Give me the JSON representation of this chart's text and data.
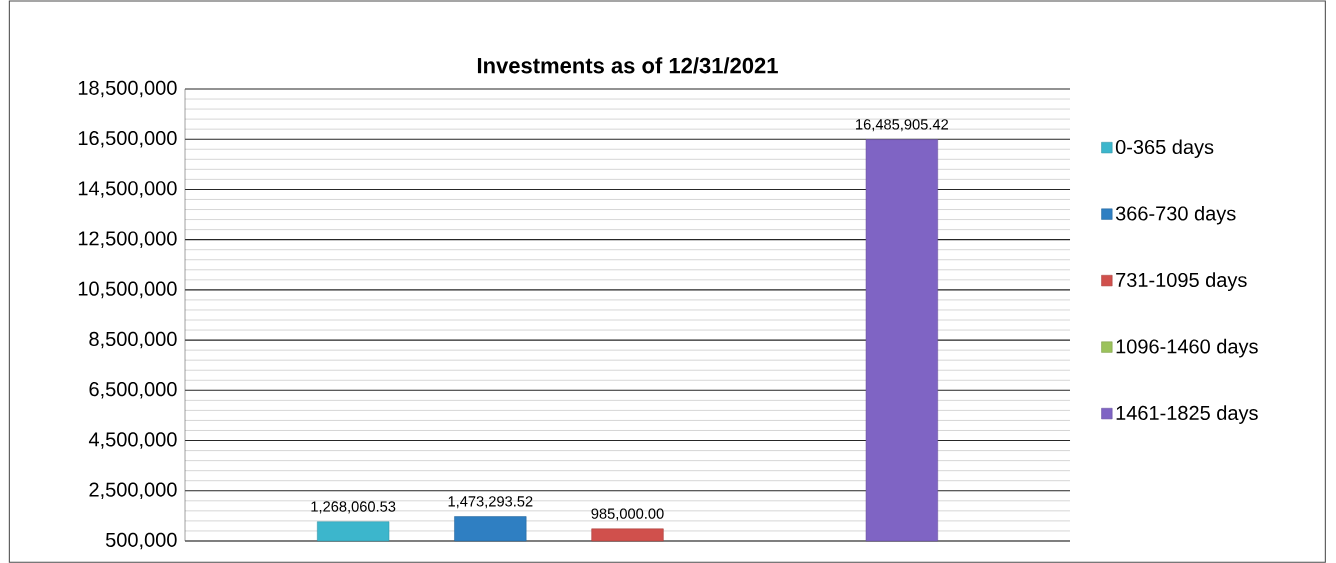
{
  "chart_data": {
    "type": "bar",
    "title": "Investments as of 12/31/2021",
    "categories": [
      null
    ],
    "series": [
      {
        "name": "0-365 days",
        "color": "#3cb6cc",
        "values": [
          1268060.53
        ],
        "value_labels": [
          "1,268,060.53"
        ]
      },
      {
        "name": "366-730 days",
        "color": "#2f7fc2",
        "values": [
          1473293.52
        ],
        "value_labels": [
          "1,473,293.52"
        ]
      },
      {
        "name": "731-1095 days",
        "color": "#d0504c",
        "values": [
          985000.0
        ],
        "value_labels": [
          "985,000.00"
        ]
      },
      {
        "name": "1096-1460 days",
        "color": "#9bc25c",
        "values": [
          null
        ],
        "value_labels": [
          null
        ]
      },
      {
        "name": "1461-1825 days",
        "color": "#7f64c4",
        "values": [
          16485905.42
        ],
        "value_labels": [
          "16,485,905.42"
        ]
      }
    ],
    "ylim": [
      500000,
      18500000
    ],
    "yticks": [
      {
        "value": 500000,
        "label": "500,000"
      },
      {
        "value": 2500000,
        "label": "2,500,000"
      },
      {
        "value": 4500000,
        "label": "4,500,000"
      },
      {
        "value": 6500000,
        "label": "6,500,000"
      },
      {
        "value": 8500000,
        "label": "8,500,000"
      },
      {
        "value": 10500000,
        "label": "10,500,000"
      },
      {
        "value": 12500000,
        "label": "12,500,000"
      },
      {
        "value": 14500000,
        "label": "14,500,000"
      },
      {
        "value": 16500000,
        "label": "16,500,000"
      },
      {
        "value": 18500000,
        "label": "18,500,000"
      }
    ],
    "grid": "y",
    "legend": "right"
  }
}
